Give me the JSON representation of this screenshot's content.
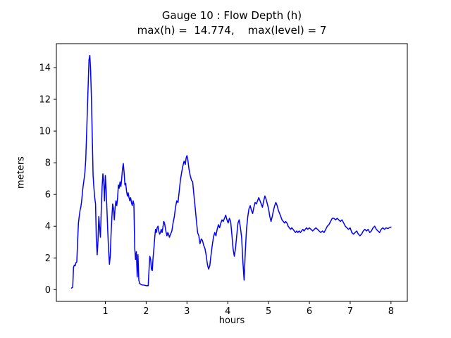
{
  "figure": {
    "background": "#ffffff"
  },
  "chart_data": {
    "type": "line",
    "title": "Gauge 10 : Flow Depth (h)",
    "subtitle": "max(h) =  14.774,    max(level) = 7",
    "xlabel": "hours",
    "ylabel": "meters",
    "max_h": 14.774,
    "max_level": 7,
    "xlim": [
      -0.2,
      8.4
    ],
    "ylim": [
      -0.74,
      15.51
    ],
    "xticks": [
      1,
      2,
      3,
      4,
      5,
      6,
      7,
      8
    ],
    "yticks": [
      0,
      2,
      4,
      6,
      8,
      10,
      12,
      14
    ],
    "grid": false,
    "legend": "none",
    "line_color": "#0000ff",
    "axis_color": "#000000",
    "series": [
      {
        "name": "flow_depth_h",
        "points": [
          [
            0.17,
            0.1
          ],
          [
            0.2,
            0.15
          ],
          [
            0.22,
            1.4
          ],
          [
            0.24,
            1.55
          ],
          [
            0.26,
            1.5
          ],
          [
            0.28,
            1.7
          ],
          [
            0.3,
            1.75
          ],
          [
            0.32,
            3.0
          ],
          [
            0.34,
            4.2
          ],
          [
            0.36,
            4.6
          ],
          [
            0.38,
            5.0
          ],
          [
            0.4,
            5.2
          ],
          [
            0.42,
            5.6
          ],
          [
            0.44,
            6.2
          ],
          [
            0.46,
            6.6
          ],
          [
            0.48,
            7.0
          ],
          [
            0.5,
            7.4
          ],
          [
            0.52,
            8.2
          ],
          [
            0.55,
            10.5
          ],
          [
            0.58,
            13.0
          ],
          [
            0.6,
            14.5
          ],
          [
            0.62,
            14.774
          ],
          [
            0.64,
            13.8
          ],
          [
            0.66,
            12.0
          ],
          [
            0.68,
            9.5
          ],
          [
            0.7,
            7.2
          ],
          [
            0.72,
            6.4
          ],
          [
            0.74,
            5.8
          ],
          [
            0.76,
            5.4
          ],
          [
            0.78,
            3.2
          ],
          [
            0.8,
            2.2
          ],
          [
            0.82,
            3.1
          ],
          [
            0.84,
            4.6
          ],
          [
            0.86,
            3.9
          ],
          [
            0.88,
            3.3
          ],
          [
            0.9,
            5.0
          ],
          [
            0.92,
            6.5
          ],
          [
            0.94,
            7.3
          ],
          [
            0.96,
            6.8
          ],
          [
            0.98,
            5.6
          ],
          [
            1.0,
            7.2
          ],
          [
            1.02,
            6.3
          ],
          [
            1.04,
            5.0
          ],
          [
            1.06,
            3.6
          ],
          [
            1.08,
            2.5
          ],
          [
            1.1,
            1.6
          ],
          [
            1.12,
            2.1
          ],
          [
            1.14,
            3.5
          ],
          [
            1.16,
            4.6
          ],
          [
            1.18,
            5.4
          ],
          [
            1.2,
            5.1
          ],
          [
            1.22,
            4.4
          ],
          [
            1.24,
            5.2
          ],
          [
            1.26,
            5.6
          ],
          [
            1.28,
            5.3
          ],
          [
            1.3,
            5.8
          ],
          [
            1.32,
            6.6
          ],
          [
            1.34,
            6.4
          ],
          [
            1.36,
            6.8
          ],
          [
            1.38,
            6.5
          ],
          [
            1.4,
            7.0
          ],
          [
            1.42,
            7.6
          ],
          [
            1.44,
            7.95
          ],
          [
            1.46,
            7.4
          ],
          [
            1.48,
            6.6
          ],
          [
            1.5,
            6.7
          ],
          [
            1.52,
            6.2
          ],
          [
            1.54,
            5.9
          ],
          [
            1.56,
            6.1
          ],
          [
            1.58,
            5.8
          ],
          [
            1.6,
            5.6
          ],
          [
            1.62,
            5.8
          ],
          [
            1.64,
            5.5
          ],
          [
            1.66,
            5.3
          ],
          [
            1.68,
            5.6
          ],
          [
            1.7,
            5.4
          ],
          [
            1.72,
            2.6
          ],
          [
            1.74,
            1.9
          ],
          [
            1.76,
            2.4
          ],
          [
            1.78,
            0.8
          ],
          [
            1.8,
            2.2
          ],
          [
            1.82,
            0.6
          ],
          [
            1.84,
            0.4
          ],
          [
            1.86,
            0.35
          ],
          [
            1.9,
            0.3
          ],
          [
            1.95,
            0.28
          ],
          [
            2.0,
            0.25
          ],
          [
            2.05,
            0.25
          ],
          [
            2.07,
            1.2
          ],
          [
            2.09,
            2.1
          ],
          [
            2.11,
            1.9
          ],
          [
            2.13,
            1.3
          ],
          [
            2.15,
            1.2
          ],
          [
            2.17,
            2.0
          ],
          [
            2.19,
            2.6
          ],
          [
            2.21,
            3.3
          ],
          [
            2.23,
            3.8
          ],
          [
            2.25,
            3.6
          ],
          [
            2.27,
            3.9
          ],
          [
            2.29,
            4.0
          ],
          [
            2.31,
            3.7
          ],
          [
            2.33,
            3.5
          ],
          [
            2.35,
            3.6
          ],
          [
            2.37,
            3.8
          ],
          [
            2.39,
            3.6
          ],
          [
            2.41,
            3.9
          ],
          [
            2.43,
            4.3
          ],
          [
            2.45,
            4.2
          ],
          [
            2.47,
            3.9
          ],
          [
            2.49,
            3.6
          ],
          [
            2.51,
            3.4
          ],
          [
            2.53,
            3.6
          ],
          [
            2.55,
            3.5
          ],
          [
            2.57,
            3.3
          ],
          [
            2.6,
            3.5
          ],
          [
            2.63,
            3.7
          ],
          [
            2.66,
            4.2
          ],
          [
            2.69,
            4.6
          ],
          [
            2.72,
            5.2
          ],
          [
            2.75,
            5.6
          ],
          [
            2.78,
            5.5
          ],
          [
            2.81,
            6.2
          ],
          [
            2.84,
            6.9
          ],
          [
            2.87,
            7.4
          ],
          [
            2.9,
            7.8
          ],
          [
            2.93,
            8.1
          ],
          [
            2.96,
            7.9
          ],
          [
            2.98,
            8.3
          ],
          [
            3.0,
            8.45
          ],
          [
            3.02,
            8.2
          ],
          [
            3.05,
            7.6
          ],
          [
            3.08,
            7.2
          ],
          [
            3.11,
            6.9
          ],
          [
            3.14,
            6.8
          ],
          [
            3.17,
            6.0
          ],
          [
            3.2,
            5.2
          ],
          [
            3.23,
            4.4
          ],
          [
            3.26,
            3.6
          ],
          [
            3.29,
            3.4
          ],
          [
            3.32,
            2.9
          ],
          [
            3.35,
            3.2
          ],
          [
            3.38,
            3.1
          ],
          [
            3.41,
            2.8
          ],
          [
            3.44,
            2.6
          ],
          [
            3.47,
            2.2
          ],
          [
            3.5,
            1.6
          ],
          [
            3.53,
            1.3
          ],
          [
            3.56,
            1.5
          ],
          [
            3.59,
            2.2
          ],
          [
            3.62,
            2.8
          ],
          [
            3.65,
            3.3
          ],
          [
            3.68,
            3.6
          ],
          [
            3.71,
            3.4
          ],
          [
            3.74,
            3.8
          ],
          [
            3.77,
            4.1
          ],
          [
            3.8,
            3.9
          ],
          [
            3.83,
            4.2
          ],
          [
            3.86,
            4.4
          ],
          [
            3.89,
            4.3
          ],
          [
            3.92,
            4.5
          ],
          [
            3.95,
            4.7
          ],
          [
            3.98,
            4.4
          ],
          [
            4.01,
            4.2
          ],
          [
            4.04,
            4.5
          ],
          [
            4.07,
            4.3
          ],
          [
            4.1,
            3.5
          ],
          [
            4.13,
            2.6
          ],
          [
            4.16,
            2.1
          ],
          [
            4.19,
            2.6
          ],
          [
            4.22,
            3.4
          ],
          [
            4.25,
            4.2
          ],
          [
            4.28,
            4.4
          ],
          [
            4.31,
            3.9
          ],
          [
            4.34,
            3.3
          ],
          [
            4.37,
            1.8
          ],
          [
            4.4,
            0.6
          ],
          [
            4.43,
            2.4
          ],
          [
            4.46,
            3.8
          ],
          [
            4.49,
            4.6
          ],
          [
            4.52,
            5.1
          ],
          [
            4.55,
            5.3
          ],
          [
            4.58,
            5.0
          ],
          [
            4.61,
            4.8
          ],
          [
            4.64,
            5.2
          ],
          [
            4.67,
            5.5
          ],
          [
            4.7,
            5.4
          ],
          [
            4.73,
            5.6
          ],
          [
            4.76,
            5.8
          ],
          [
            4.79,
            5.6
          ],
          [
            4.82,
            5.4
          ],
          [
            4.85,
            5.2
          ],
          [
            4.88,
            5.6
          ],
          [
            4.91,
            5.9
          ],
          [
            4.94,
            5.7
          ],
          [
            4.97,
            5.4
          ],
          [
            5.0,
            5.1
          ],
          [
            5.03,
            4.6
          ],
          [
            5.06,
            4.3
          ],
          [
            5.09,
            4.6
          ],
          [
            5.12,
            5.0
          ],
          [
            5.15,
            5.3
          ],
          [
            5.18,
            5.5
          ],
          [
            5.21,
            5.3
          ],
          [
            5.24,
            5.0
          ],
          [
            5.27,
            4.8
          ],
          [
            5.3,
            4.6
          ],
          [
            5.33,
            4.4
          ],
          [
            5.36,
            4.3
          ],
          [
            5.39,
            4.2
          ],
          [
            5.42,
            4.3
          ],
          [
            5.45,
            4.2
          ],
          [
            5.48,
            4.0
          ],
          [
            5.51,
            3.9
          ],
          [
            5.54,
            3.8
          ],
          [
            5.57,
            3.9
          ],
          [
            5.6,
            3.8
          ],
          [
            5.63,
            3.7
          ],
          [
            5.66,
            3.6
          ],
          [
            5.69,
            3.7
          ],
          [
            5.72,
            3.6
          ],
          [
            5.75,
            3.7
          ],
          [
            5.78,
            3.6
          ],
          [
            5.81,
            3.7
          ],
          [
            5.84,
            3.8
          ],
          [
            5.87,
            3.7
          ],
          [
            5.9,
            3.8
          ],
          [
            5.93,
            3.9
          ],
          [
            5.96,
            3.8
          ],
          [
            6.0,
            3.9
          ],
          [
            6.04,
            3.8
          ],
          [
            6.08,
            3.7
          ],
          [
            6.12,
            3.8
          ],
          [
            6.16,
            3.9
          ],
          [
            6.2,
            3.8
          ],
          [
            6.24,
            3.7
          ],
          [
            6.28,
            3.6
          ],
          [
            6.32,
            3.7
          ],
          [
            6.36,
            3.6
          ],
          [
            6.4,
            3.8
          ],
          [
            6.44,
            4.0
          ],
          [
            6.48,
            4.1
          ],
          [
            6.52,
            4.3
          ],
          [
            6.56,
            4.5
          ],
          [
            6.6,
            4.5
          ],
          [
            6.64,
            4.4
          ],
          [
            6.68,
            4.5
          ],
          [
            6.72,
            4.4
          ],
          [
            6.76,
            4.3
          ],
          [
            6.8,
            4.4
          ],
          [
            6.84,
            4.2
          ],
          [
            6.88,
            4.0
          ],
          [
            6.92,
            3.9
          ],
          [
            6.96,
            3.8
          ],
          [
            7.0,
            3.9
          ],
          [
            7.04,
            3.6
          ],
          [
            7.08,
            3.5
          ],
          [
            7.12,
            3.6
          ],
          [
            7.16,
            3.7
          ],
          [
            7.2,
            3.5
          ],
          [
            7.24,
            3.4
          ],
          [
            7.28,
            3.5
          ],
          [
            7.32,
            3.7
          ],
          [
            7.36,
            3.8
          ],
          [
            7.4,
            3.7
          ],
          [
            7.44,
            3.8
          ],
          [
            7.48,
            3.6
          ],
          [
            7.52,
            3.7
          ],
          [
            7.56,
            3.9
          ],
          [
            7.6,
            4.0
          ],
          [
            7.64,
            3.8
          ],
          [
            7.68,
            3.7
          ],
          [
            7.72,
            3.6
          ],
          [
            7.76,
            3.8
          ],
          [
            7.8,
            3.9
          ],
          [
            7.84,
            3.8
          ],
          [
            7.88,
            3.9
          ],
          [
            7.92,
            3.85
          ],
          [
            7.96,
            3.9
          ],
          [
            8.0,
            3.95
          ]
        ]
      }
    ]
  }
}
